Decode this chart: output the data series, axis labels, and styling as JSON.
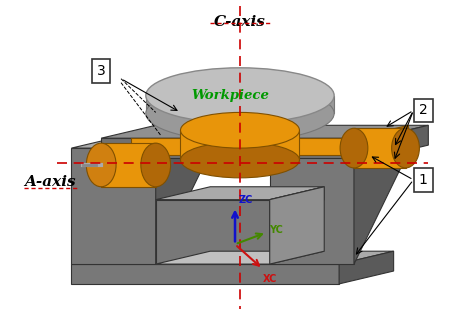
{
  "fig_width": 4.74,
  "fig_height": 3.19,
  "dpi": 100,
  "bg_color": "#ffffff",
  "colors": {
    "body_front": "#787878",
    "body_side": "#5a5a5a",
    "body_top": "#aaaaaa",
    "inner_floor": "#c0c0c0",
    "inner_back": "#909090",
    "platform_top": "#909090",
    "platform_front": "#707070",
    "platform_side": "#606060",
    "orange": "#e8950a",
    "orange_dark": "#b06808",
    "orange_face": "#d08010",
    "disk_top": "#c0c0c0",
    "disk_side": "#999999",
    "shaft_color": "#aaaaaa",
    "edge_color": "#333333"
  },
  "C_axis_label": "C-axis",
  "A_axis_label": "A-axis",
  "workpiece_text": "Workpiece",
  "workpiece_color": "#009900",
  "label_1": "1",
  "label_2": "2",
  "label_3": "3",
  "coord": {
    "ZC_color": "#1111cc",
    "YC_color": "#448800",
    "XC_color": "#cc1111"
  }
}
